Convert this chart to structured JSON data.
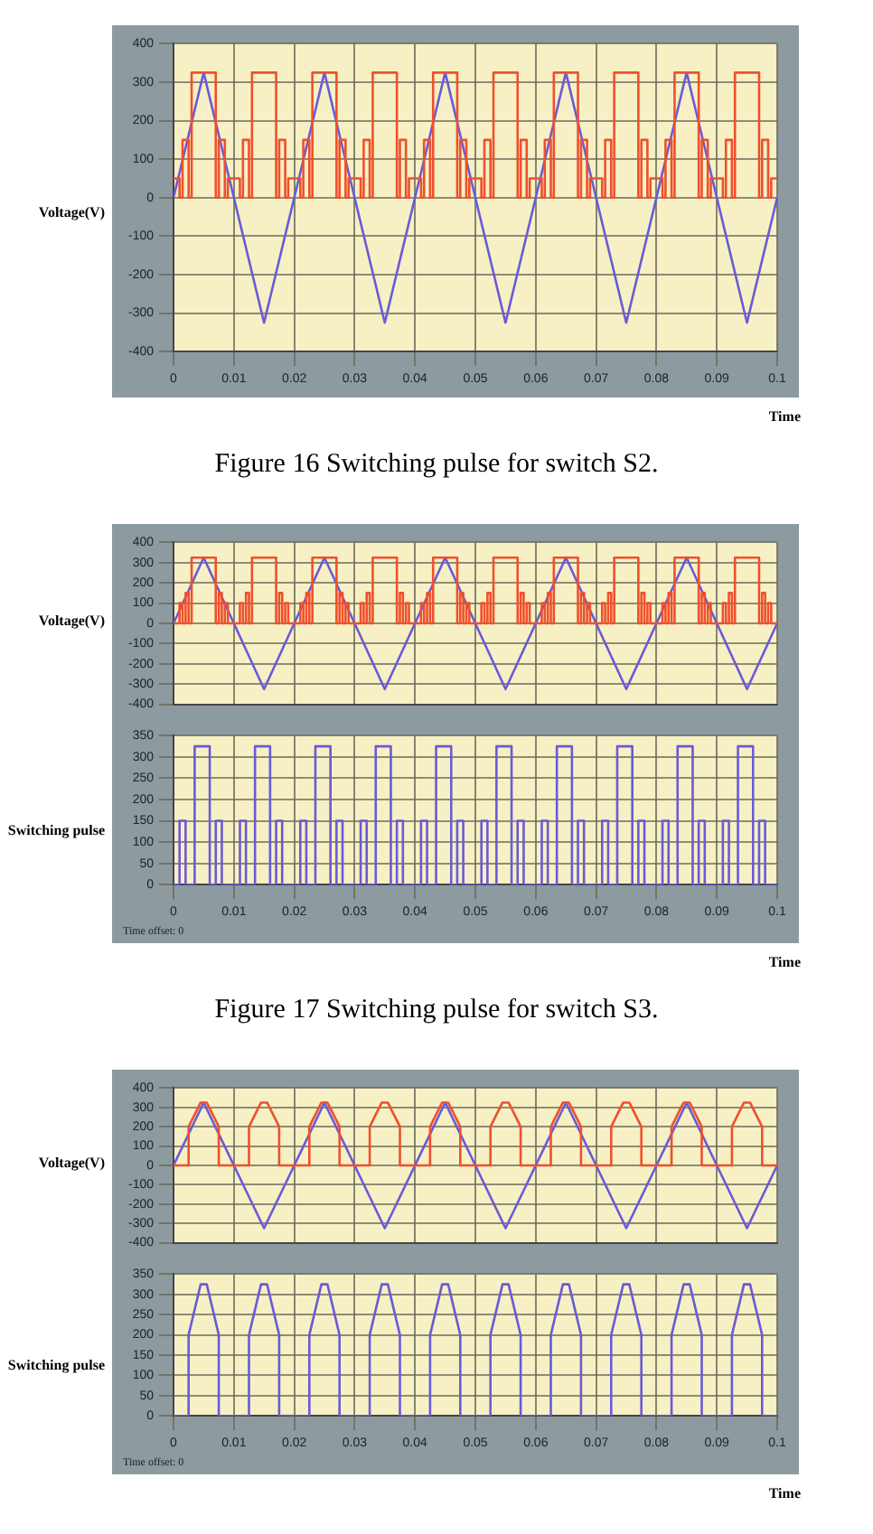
{
  "chart_data": [
    {
      "type": "step",
      "ylabel": "Voltage(V)",
      "xlabel": "Time",
      "annotations": [
        "Figure 16 Switching pulse for switch S2."
      ],
      "xlim": [
        0,
        0.1
      ],
      "xticks": [
        0,
        0.01,
        0.02,
        0.03,
        0.04,
        0.05,
        0.06,
        0.07,
        0.08,
        0.09,
        0.1
      ],
      "ylim": [
        -400,
        400
      ],
      "yticks": [
        -400,
        -300,
        -200,
        -100,
        0,
        100,
        200,
        300,
        400
      ],
      "grid": true,
      "series": [
        {
          "color": "#f0502c",
          "x": [
            0,
            0.001,
            0.0015,
            0.0025,
            0.003,
            0.007,
            0.0075,
            0.0085,
            0.009,
            0.01,
            0.011,
            0.0115,
            0.0125,
            0.013,
            0.017,
            0.0175,
            0.0185,
            0.019,
            0.02,
            0.021,
            0.0215,
            0.0225,
            0.023,
            0.027,
            0.0275,
            0.0285,
            0.029,
            0.03,
            0.031,
            0.0315,
            0.0325,
            0.033,
            0.037,
            0.0375,
            0.0385,
            0.039,
            0.04,
            0.041,
            0.0415,
            0.0425,
            0.043,
            0.047,
            0.0475,
            0.0485,
            0.049,
            0.05,
            0.051,
            0.0515,
            0.0525,
            0.053,
            0.057,
            0.0575,
            0.0585,
            0.059,
            0.06,
            0.061,
            0.0615,
            0.0625,
            0.063,
            0.067,
            0.0675,
            0.0685,
            0.069,
            0.07,
            0.071,
            0.0715,
            0.0725,
            0.073,
            0.077,
            0.0775,
            0.0785,
            0.079,
            0.08,
            0.081,
            0.0815,
            0.0825,
            0.083,
            0.087,
            0.0875,
            0.0885,
            0.089,
            0.09,
            0.091,
            0.0915,
            0.0925,
            0.093,
            0.097,
            0.0975,
            0.0985,
            0.099,
            0.1
          ],
          "values": [
            50,
            0,
            150,
            0,
            325,
            0,
            150,
            0,
            50,
            50,
            0,
            150,
            0,
            325,
            0,
            150,
            0,
            50,
            50,
            0,
            150,
            0,
            325,
            0,
            150,
            0,
            50,
            50,
            0,
            150,
            0,
            325,
            0,
            150,
            0,
            50,
            50,
            0,
            150,
            0,
            325,
            0,
            150,
            0,
            50,
            50,
            0,
            150,
            0,
            325,
            0,
            150,
            0,
            50,
            50,
            0,
            150,
            0,
            325,
            0,
            150,
            0,
            50,
            50,
            0,
            150,
            0,
            325,
            0,
            150,
            0,
            50,
            50,
            0,
            150,
            0,
            325,
            0,
            150,
            0,
            50,
            50,
            0,
            150,
            0,
            325,
            0,
            150,
            0,
            50,
            50
          ]
        },
        {
          "type": "line",
          "color": "#6a5ad8",
          "x": [
            0,
            0.005,
            0.01,
            0.015,
            0.02,
            0.025,
            0.03,
            0.035,
            0.04,
            0.045,
            0.05,
            0.055,
            0.06,
            0.065,
            0.07,
            0.075,
            0.08,
            0.085,
            0.09,
            0.095,
            0.1
          ],
          "values": [
            0,
            325,
            0,
            -325,
            0,
            325,
            0,
            -325,
            0,
            325,
            0,
            -325,
            0,
            325,
            0,
            -325,
            0,
            325,
            0,
            -325,
            0
          ]
        }
      ]
    },
    {
      "type": "step",
      "ylabel": "Voltage(V)",
      "tick_labels": "y",
      "xlim": [
        0,
        0.1
      ],
      "xticks": [
        0,
        0.01,
        0.02,
        0.03,
        0.04,
        0.05,
        0.06,
        0.07,
        0.08,
        0.09,
        0.1
      ],
      "ylim": [
        -400,
        400
      ],
      "yticks": [
        -400,
        -300,
        -200,
        -100,
        0,
        100,
        200,
        300,
        400
      ],
      "grid": true,
      "series": [
        {
          "color": "#f0502c",
          "x": [
            0,
            0.001,
            0.0015,
            0.002,
            0.0025,
            0.003,
            0.007,
            0.0075,
            0.008,
            0.0085,
            0.009,
            0.01,
            0.011,
            0.0115,
            0.012,
            0.0125,
            0.013,
            0.017,
            0.0175,
            0.018,
            0.0185,
            0.019,
            0.02,
            0.021,
            0.0215,
            0.022,
            0.0225,
            0.023,
            0.027,
            0.0275,
            0.028,
            0.0285,
            0.029,
            0.03,
            0.031,
            0.0315,
            0.032,
            0.0325,
            0.033,
            0.037,
            0.0375,
            0.038,
            0.0385,
            0.039,
            0.04,
            0.041,
            0.0415,
            0.042,
            0.0425,
            0.043,
            0.047,
            0.0475,
            0.048,
            0.0485,
            0.049,
            0.05,
            0.051,
            0.0515,
            0.052,
            0.0525,
            0.053,
            0.057,
            0.0575,
            0.058,
            0.0585,
            0.059,
            0.06,
            0.061,
            0.0615,
            0.062,
            0.0625,
            0.063,
            0.067,
            0.0675,
            0.068,
            0.0685,
            0.069,
            0.07,
            0.071,
            0.0715,
            0.072,
            0.0725,
            0.073,
            0.077,
            0.0775,
            0.078,
            0.0785,
            0.079,
            0.08,
            0.081,
            0.0815,
            0.082,
            0.0825,
            0.083,
            0.087,
            0.0875,
            0.088,
            0.0885,
            0.089,
            0.09,
            0.091,
            0.0915,
            0.092,
            0.0925,
            0.093,
            0.097,
            0.0975,
            0.098,
            0.0985,
            0.099,
            0.1
          ],
          "values": [
            0,
            100,
            0,
            150,
            0,
            325,
            0,
            150,
            0,
            100,
            0,
            0,
            100,
            0,
            150,
            0,
            325,
            0,
            150,
            0,
            100,
            0,
            0,
            100,
            0,
            150,
            0,
            325,
            0,
            150,
            0,
            100,
            0,
            0,
            100,
            0,
            150,
            0,
            325,
            0,
            150,
            0,
            100,
            0,
            0,
            100,
            0,
            150,
            0,
            325,
            0,
            150,
            0,
            100,
            0,
            0,
            100,
            0,
            150,
            0,
            325,
            0,
            150,
            0,
            100,
            0,
            0,
            100,
            0,
            150,
            0,
            325,
            0,
            150,
            0,
            100,
            0,
            0,
            100,
            0,
            150,
            0,
            325,
            0,
            150,
            0,
            100,
            0,
            0,
            100,
            0,
            150,
            0,
            325,
            0,
            150,
            0,
            100,
            0,
            0,
            100,
            0,
            150,
            0,
            325,
            0,
            150,
            0,
            100,
            0,
            0
          ]
        },
        {
          "type": "line",
          "color": "#6a5ad8",
          "x": [
            0,
            0.005,
            0.01,
            0.015,
            0.02,
            0.025,
            0.03,
            0.035,
            0.04,
            0.045,
            0.05,
            0.055,
            0.06,
            0.065,
            0.07,
            0.075,
            0.08,
            0.085,
            0.09,
            0.095,
            0.1
          ],
          "values": [
            0,
            325,
            0,
            -325,
            0,
            325,
            0,
            -325,
            0,
            325,
            0,
            -325,
            0,
            325,
            0,
            -325,
            0,
            325,
            0,
            -325,
            0
          ]
        }
      ]
    },
    {
      "type": "step",
      "ylabel": "Switching pulse",
      "xlabel": "Time",
      "annotations": [
        "Time offset: 0",
        "Figure 17 Switching pulse for switch S3."
      ],
      "xlim": [
        0,
        0.1
      ],
      "xticks": [
        0,
        0.01,
        0.02,
        0.03,
        0.04,
        0.05,
        0.06,
        0.07,
        0.08,
        0.09,
        0.1
      ],
      "ylim": [
        0,
        350
      ],
      "yticks": [
        0,
        50,
        100,
        150,
        200,
        250,
        300,
        350
      ],
      "grid": true,
      "series": [
        {
          "color": "#6a5ad8",
          "x": [
            0,
            0.001,
            0.002,
            0.0035,
            0.006,
            0.007,
            0.008,
            0.01,
            0.011,
            0.012,
            0.0135,
            0.016,
            0.017,
            0.018,
            0.02,
            0.021,
            0.022,
            0.0235,
            0.026,
            0.027,
            0.028,
            0.03,
            0.031,
            0.032,
            0.0335,
            0.036,
            0.037,
            0.038,
            0.04,
            0.041,
            0.042,
            0.0435,
            0.046,
            0.047,
            0.048,
            0.05,
            0.051,
            0.052,
            0.0535,
            0.056,
            0.057,
            0.058,
            0.06,
            0.061,
            0.062,
            0.0635,
            0.066,
            0.067,
            0.068,
            0.07,
            0.071,
            0.072,
            0.0735,
            0.076,
            0.077,
            0.078,
            0.08,
            0.081,
            0.082,
            0.0835,
            0.086,
            0.087,
            0.088,
            0.09,
            0.091,
            0.092,
            0.0935,
            0.096,
            0.097,
            0.098,
            0.1
          ],
          "values": [
            0,
            150,
            0,
            325,
            0,
            150,
            0,
            0,
            150,
            0,
            325,
            0,
            150,
            0,
            0,
            150,
            0,
            325,
            0,
            150,
            0,
            0,
            150,
            0,
            325,
            0,
            150,
            0,
            0,
            150,
            0,
            325,
            0,
            150,
            0,
            0,
            150,
            0,
            325,
            0,
            150,
            0,
            0,
            150,
            0,
            325,
            0,
            150,
            0,
            0,
            150,
            0,
            325,
            0,
            150,
            0,
            0,
            150,
            0,
            325,
            0,
            150,
            0,
            0,
            150,
            0,
            325,
            0,
            150,
            0,
            0
          ]
        }
      ]
    },
    {
      "type": "line",
      "ylabel": "Voltage(V)",
      "tick_labels": "y",
      "xlim": [
        0,
        0.1
      ],
      "xticks": [
        0,
        0.01,
        0.02,
        0.03,
        0.04,
        0.05,
        0.06,
        0.07,
        0.08,
        0.09,
        0.1
      ],
      "ylim": [
        -400,
        400
      ],
      "yticks": [
        -400,
        -300,
        -200,
        -100,
        0,
        100,
        200,
        300,
        400
      ],
      "grid": true,
      "series": [
        {
          "color": "#f0502c",
          "x": [
            0,
            0.0025,
            0.0025,
            0.0045,
            0.0055,
            0.0075,
            0.0075,
            0.0125,
            0.0125,
            0.0145,
            0.0155,
            0.0175,
            0.0175,
            0.0225,
            0.0225,
            0.0245,
            0.0255,
            0.0275,
            0.0275,
            0.0325,
            0.0325,
            0.0345,
            0.0355,
            0.0375,
            0.0375,
            0.0425,
            0.0425,
            0.0445,
            0.0455,
            0.0475,
            0.0475,
            0.0525,
            0.0525,
            0.0545,
            0.0555,
            0.0575,
            0.0575,
            0.0625,
            0.0625,
            0.0645,
            0.0655,
            0.0675,
            0.0675,
            0.0725,
            0.0725,
            0.0745,
            0.0755,
            0.0775,
            0.0775,
            0.0825,
            0.0825,
            0.0845,
            0.0855,
            0.0875,
            0.0875,
            0.0925,
            0.0925,
            0.0945,
            0.0955,
            0.0975,
            0.0975,
            0.1
          ],
          "values": [
            0,
            0,
            200,
            325,
            325,
            200,
            0,
            0,
            200,
            325,
            325,
            200,
            0,
            0,
            200,
            325,
            325,
            200,
            0,
            0,
            200,
            325,
            325,
            200,
            0,
            0,
            200,
            325,
            325,
            200,
            0,
            0,
            200,
            325,
            325,
            200,
            0,
            0,
            200,
            325,
            325,
            200,
            0,
            0,
            200,
            325,
            325,
            200,
            0,
            0,
            200,
            325,
            325,
            200,
            0,
            0,
            200,
            325,
            325,
            200,
            0,
            0
          ]
        },
        {
          "color": "#6a5ad8",
          "x": [
            0,
            0.005,
            0.01,
            0.015,
            0.02,
            0.025,
            0.03,
            0.035,
            0.04,
            0.045,
            0.05,
            0.055,
            0.06,
            0.065,
            0.07,
            0.075,
            0.08,
            0.085,
            0.09,
            0.095,
            0.1
          ],
          "values": [
            0,
            325,
            0,
            -325,
            0,
            325,
            0,
            -325,
            0,
            325,
            0,
            -325,
            0,
            325,
            0,
            -325,
            0,
            325,
            0,
            -325,
            0
          ]
        }
      ]
    },
    {
      "type": "line",
      "ylabel": "Switching pulse",
      "xlabel": "Time",
      "annotations": [
        "Time offset: 0"
      ],
      "xlim": [
        0,
        0.1
      ],
      "xticks": [
        0,
        0.01,
        0.02,
        0.03,
        0.04,
        0.05,
        0.06,
        0.07,
        0.08,
        0.09,
        0.1
      ],
      "ylim": [
        0,
        350
      ],
      "yticks": [
        0,
        50,
        100,
        150,
        200,
        250,
        300,
        350
      ],
      "grid": true,
      "series": [
        {
          "color": "#6a5ad8",
          "x": [
            0,
            0.0025,
            0.0025,
            0.0045,
            0.0055,
            0.0075,
            0.0075,
            0.0125,
            0.0125,
            0.0145,
            0.0155,
            0.0175,
            0.0175,
            0.0225,
            0.0225,
            0.0245,
            0.0255,
            0.0275,
            0.0275,
            0.0325,
            0.0325,
            0.0345,
            0.0355,
            0.0375,
            0.0375,
            0.0425,
            0.0425,
            0.0445,
            0.0455,
            0.0475,
            0.0475,
            0.0525,
            0.0525,
            0.0545,
            0.0555,
            0.0575,
            0.0575,
            0.0625,
            0.0625,
            0.0645,
            0.0655,
            0.0675,
            0.0675,
            0.0725,
            0.0725,
            0.0745,
            0.0755,
            0.0775,
            0.0775,
            0.0825,
            0.0825,
            0.0845,
            0.0855,
            0.0875,
            0.0875,
            0.0925,
            0.0925,
            0.0945,
            0.0955,
            0.0975,
            0.0975,
            0.1
          ],
          "values": [
            0,
            0,
            200,
            325,
            325,
            200,
            0,
            0,
            200,
            325,
            325,
            200,
            0,
            0,
            200,
            325,
            325,
            200,
            0,
            0,
            200,
            325,
            325,
            200,
            0,
            0,
            200,
            325,
            325,
            200,
            0,
            0,
            200,
            325,
            325,
            200,
            0,
            0,
            200,
            325,
            325,
            200,
            0,
            0,
            200,
            325,
            325,
            200,
            0,
            0,
            200,
            325,
            325,
            200,
            0,
            0,
            200,
            325,
            325,
            200,
            0,
            0
          ]
        }
      ]
    }
  ]
}
